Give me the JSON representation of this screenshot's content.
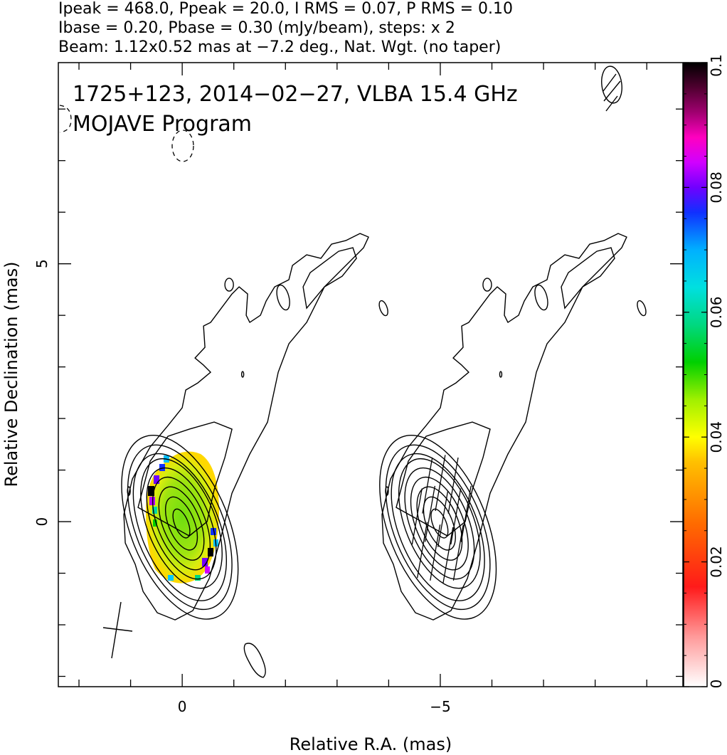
{
  "header": {
    "line1": "Ipeak = 468.0, Ppeak = 20.0, I RMS = 0.07, P RMS = 0.10",
    "line2": "Ibase = 0.20, Pbase = 0.30 (mJy/beam), steps: x 2",
    "line3": "Beam: 1.12x0.52 mas at −7.2 deg., Nat. Wgt. (no taper)"
  },
  "chart_data": {
    "type": "heatmap",
    "title_line1": "1725+123, 2014−02−27, VLBA 15.4 GHz",
    "title_line2": "MOJAVE Program",
    "xlabel": "Relative R.A. (mas)",
    "ylabel": "Relative Declination (mas)",
    "x_ticks": [
      {
        "value": 0,
        "label": "0"
      },
      {
        "value": -5,
        "label": "−5"
      }
    ],
    "y_ticks": [
      {
        "value": 0,
        "label": "0"
      },
      {
        "value": 5,
        "label": "5"
      }
    ],
    "xlim": [
      2.4,
      -9.7
    ],
    "ylim": [
      -3.2,
      8.9
    ],
    "colorbar": {
      "range": [
        0,
        0.1
      ],
      "ticks": [
        {
          "value": 0,
          "label": "0"
        },
        {
          "value": 0.02,
          "label": "0.02"
        },
        {
          "value": 0.04,
          "label": "0.04"
        },
        {
          "value": 0.06,
          "label": "0.06"
        },
        {
          "value": 0.08,
          "label": "0.08"
        },
        {
          "value": 0.1,
          "label": "0.1"
        }
      ]
    },
    "panels": [
      {
        "name": "total-intensity-with-fractional-polarization",
        "x_offset": 0
      },
      {
        "name": "total-intensity-with-evpa-ticks",
        "x_offset": -5
      }
    ],
    "core": {
      "ra": 0,
      "dec": 0
    },
    "evpa_ticks": [
      {
        "dx": -0.25,
        "dy": 0.7
      },
      {
        "dx": 0.0,
        "dy": 0.75
      },
      {
        "dx": 0.25,
        "dy": 0.7
      },
      {
        "dx": -0.45,
        "dy": 0.1
      },
      {
        "dx": -0.2,
        "dy": 0.15
      },
      {
        "dx": 0.05,
        "dy": 0.05
      },
      {
        "dx": 0.3,
        "dy": 0.1
      },
      {
        "dx": 0.5,
        "dy": 0.15
      },
      {
        "dx": -0.35,
        "dy": -0.55
      },
      {
        "dx": -0.1,
        "dy": -0.6
      },
      {
        "dx": 0.15,
        "dy": -0.65
      },
      {
        "dx": 0.35,
        "dy": -0.6
      }
    ]
  }
}
